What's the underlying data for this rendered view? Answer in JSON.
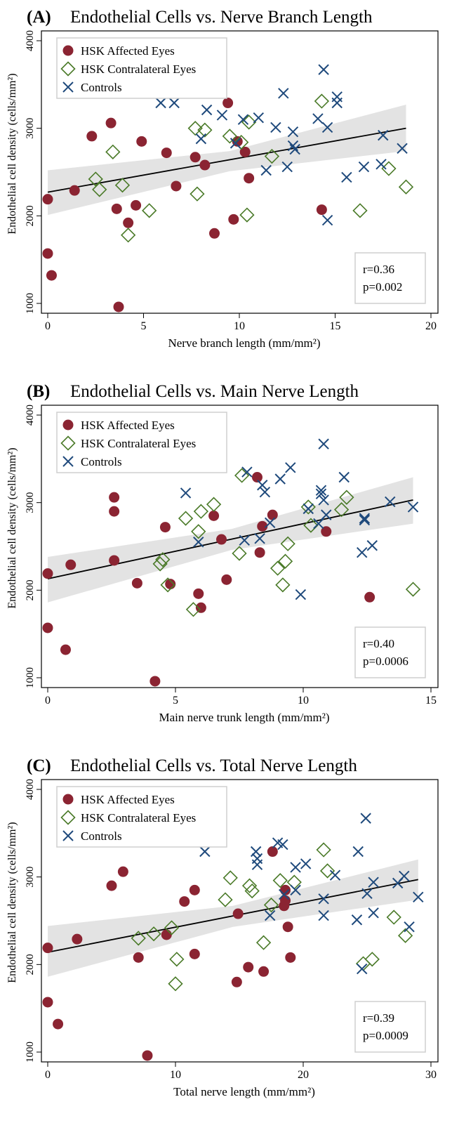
{
  "chart_data": [
    {
      "type": "scatter",
      "panel_label": "(A)",
      "title": "Endothelial Cells vs. Nerve Branch Length",
      "xlabel": "Nerve branch length (mm/mm²)",
      "ylabel": "Endothelial cell density (cells/mm²)",
      "xlim": [
        0,
        20
      ],
      "ylim": [
        1000,
        4000
      ],
      "xticks": [
        "0",
        "5",
        "10",
        "15",
        "20"
      ],
      "yticks": [
        "1000",
        "2000",
        "3000",
        "4000"
      ],
      "legend_position": "top-left",
      "stat_r": "r=0.36",
      "stat_p": "p=0.002",
      "fit_line": {
        "x": [
          0,
          18.7
        ],
        "y": [
          2270,
          3000
        ]
      },
      "ci_band": {
        "x": [
          0,
          9.5,
          18.7
        ],
        "upper": [
          2520,
          2740,
          3270
        ],
        "lower": [
          2010,
          2510,
          2740
        ]
      },
      "series": [
        {
          "name": "HSK Affected Eyes",
          "marker": "circle",
          "color": "#8b2432",
          "points": [
            [
              0,
              2190
            ],
            [
              0,
              1570
            ],
            [
              0.2,
              1320
            ],
            [
              1.4,
              2290
            ],
            [
              2.3,
              2910
            ],
            [
              3.3,
              3060
            ],
            [
              3.6,
              2080
            ],
            [
              3.7,
              960
            ],
            [
              4.2,
              1920
            ],
            [
              4.6,
              2120
            ],
            [
              4.9,
              2850
            ],
            [
              6.2,
              2720
            ],
            [
              6.7,
              2340
            ],
            [
              7.7,
              2670
            ],
            [
              8.2,
              2580
            ],
            [
              8.7,
              1800
            ],
            [
              9.4,
              3290
            ],
            [
              9.7,
              1960
            ],
            [
              9.9,
              2850
            ],
            [
              10.3,
              2730
            ],
            [
              10.5,
              2430
            ],
            [
              14.3,
              2070
            ]
          ]
        },
        {
          "name": "HSK Contralateral Eyes",
          "marker": "diamond",
          "color": "#4a7a28",
          "points": [
            [
              2.5,
              2420
            ],
            [
              2.7,
              2300
            ],
            [
              3.4,
              2730
            ],
            [
              3.9,
              2350
            ],
            [
              4.2,
              1780
            ],
            [
              5.3,
              2060
            ],
            [
              7.7,
              3000
            ],
            [
              7.8,
              2250
            ],
            [
              8.2,
              2980
            ],
            [
              9.5,
              2910
            ],
            [
              10.1,
              2840
            ],
            [
              10.4,
              2010
            ],
            [
              10.5,
              3070
            ],
            [
              11.7,
              2680
            ],
            [
              14.3,
              3310
            ],
            [
              16.3,
              2060
            ],
            [
              17.8,
              2540
            ],
            [
              18.7,
              2330
            ]
          ]
        },
        {
          "name": "Controls",
          "marker": "x",
          "color": "#1f4a7c",
          "points": [
            [
              5.9,
              3290
            ],
            [
              6.6,
              3290
            ],
            [
              8.0,
              2880
            ],
            [
              8.3,
              3210
            ],
            [
              9.1,
              3150
            ],
            [
              9.8,
              2830
            ],
            [
              10.2,
              3100
            ],
            [
              11.0,
              3120
            ],
            [
              11.4,
              2520
            ],
            [
              11.9,
              3010
            ],
            [
              12.3,
              3400
            ],
            [
              12.5,
              2560
            ],
            [
              12.8,
              2960
            ],
            [
              12.8,
              2800
            ],
            [
              12.9,
              2760
            ],
            [
              14.1,
              3110
            ],
            [
              14.4,
              3670
            ],
            [
              14.6,
              1950
            ],
            [
              14.6,
              3010
            ],
            [
              15.1,
              3360
            ],
            [
              15.1,
              3290
            ],
            [
              15.6,
              2440
            ],
            [
              16.5,
              2560
            ],
            [
              17.4,
              2590
            ],
            [
              17.5,
              2920
            ],
            [
              18.5,
              2770
            ]
          ]
        }
      ]
    },
    {
      "type": "scatter",
      "panel_label": "(B)",
      "title": "Endothelial Cells vs. Main Nerve Length",
      "xlabel": "Main nerve trunk length (mm/mm²)",
      "ylabel": "Endothelial cell density (cells/mm²)",
      "xlim": [
        0,
        15
      ],
      "ylim": [
        1000,
        4000
      ],
      "xticks": [
        "0",
        "5",
        "10",
        "15"
      ],
      "yticks": [
        "1000",
        "2000",
        "3000",
        "4000"
      ],
      "legend_position": "top-left",
      "stat_r": "r=0.40",
      "stat_p": "p=0.0006",
      "fit_line": {
        "x": [
          0,
          14.3
        ],
        "y": [
          2130,
          3030
        ]
      },
      "ci_band": {
        "x": [
          0,
          7.2,
          14.3
        ],
        "upper": [
          2380,
          2700,
          3290
        ],
        "lower": [
          1860,
          2460,
          2760
        ]
      },
      "series": [
        {
          "name": "HSK Affected Eyes",
          "marker": "circle",
          "color": "#8b2432",
          "points": [
            [
              0,
              2190
            ],
            [
              0,
              1570
            ],
            [
              0.7,
              1320
            ],
            [
              0.9,
              2290
            ],
            [
              2.6,
              3060
            ],
            [
              2.6,
              2900
            ],
            [
              2.6,
              2340
            ],
            [
              3.5,
              2080
            ],
            [
              4.2,
              960
            ],
            [
              4.6,
              2720
            ],
            [
              4.8,
              2070
            ],
            [
              5.9,
              1960
            ],
            [
              6.0,
              1800
            ],
            [
              6.5,
              2850
            ],
            [
              6.8,
              2580
            ],
            [
              7.0,
              2120
            ],
            [
              8.2,
              3290
            ],
            [
              8.3,
              2430
            ],
            [
              8.4,
              2730
            ],
            [
              8.8,
              2860
            ],
            [
              10.9,
              2670
            ],
            [
              12.6,
              1920
            ]
          ]
        },
        {
          "name": "HSK Contralateral Eyes",
          "marker": "diamond",
          "color": "#4a7a28",
          "points": [
            [
              4.4,
              2300
            ],
            [
              4.5,
              2350
            ],
            [
              4.7,
              2060
            ],
            [
              5.4,
              2820
            ],
            [
              5.7,
              1780
            ],
            [
              5.9,
              2670
            ],
            [
              6.0,
              2900
            ],
            [
              6.5,
              2980
            ],
            [
              7.5,
              2420
            ],
            [
              7.6,
              3310
            ],
            [
              9.0,
              2250
            ],
            [
              9.2,
              2060
            ],
            [
              9.3,
              2330
            ],
            [
              9.4,
              2530
            ],
            [
              10.2,
              2950
            ],
            [
              10.3,
              2740
            ],
            [
              11.5,
              2920
            ],
            [
              11.7,
              3060
            ],
            [
              14.3,
              2010
            ]
          ]
        },
        {
          "name": "Controls",
          "marker": "x",
          "color": "#1f4a7c",
          "points": [
            [
              5.4,
              3110
            ],
            [
              5.9,
              2550
            ],
            [
              7.7,
              2570
            ],
            [
              7.8,
              3350
            ],
            [
              8.3,
              2590
            ],
            [
              8.4,
              3200
            ],
            [
              8.5,
              3120
            ],
            [
              8.7,
              2770
            ],
            [
              9.1,
              3270
            ],
            [
              9.5,
              3400
            ],
            [
              9.9,
              1950
            ],
            [
              10.2,
              2930
            ],
            [
              10.6,
              2760
            ],
            [
              10.7,
              3100
            ],
            [
              10.7,
              3140
            ],
            [
              10.8,
              3670
            ],
            [
              10.8,
              3030
            ],
            [
              10.9,
              2860
            ],
            [
              11.6,
              3290
            ],
            [
              12.3,
              2430
            ],
            [
              12.4,
              2820
            ],
            [
              12.4,
              2800
            ],
            [
              12.7,
              2510
            ],
            [
              13.4,
              3010
            ],
            [
              14.3,
              2950
            ]
          ]
        }
      ]
    },
    {
      "type": "scatter",
      "panel_label": "(C)",
      "title": "Endothelial Cells vs. Total Nerve Length",
      "xlabel": "Total nerve length (mm/mm²)",
      "ylabel": "Endothelial cell density (cells/mm²)",
      "xlim": [
        0,
        30
      ],
      "ylim": [
        1000,
        4000
      ],
      "xticks": [
        "0",
        "10",
        "20",
        "30"
      ],
      "yticks": [
        "1000",
        "2000",
        "3000",
        "4000"
      ],
      "legend_position": "top-left",
      "stat_r": "r=0.39",
      "stat_p": "p=0.0009",
      "fit_line": {
        "x": [
          0,
          29
        ],
        "y": [
          2140,
          2970
        ]
      },
      "ci_band": {
        "x": [
          0,
          14.5,
          29
        ],
        "upper": [
          2440,
          2670,
          3200
        ],
        "lower": [
          1860,
          2430,
          2740
        ]
      },
      "series": [
        {
          "name": "HSK Affected Eyes",
          "marker": "circle",
          "color": "#8b2432",
          "points": [
            [
              0,
              2190
            ],
            [
              0,
              1570
            ],
            [
              0.8,
              1320
            ],
            [
              2.3,
              2290
            ],
            [
              5.0,
              2900
            ],
            [
              5.9,
              3060
            ],
            [
              7.1,
              2080
            ],
            [
              7.8,
              960
            ],
            [
              9.3,
              2340
            ],
            [
              10.7,
              2720
            ],
            [
              11.5,
              2850
            ],
            [
              11.5,
              2120
            ],
            [
              14.8,
              1800
            ],
            [
              14.9,
              2580
            ],
            [
              15.7,
              1970
            ],
            [
              16.9,
              1920
            ],
            [
              17.6,
              3290
            ],
            [
              18.5,
              2670
            ],
            [
              18.6,
              2730
            ],
            [
              18.6,
              2850
            ],
            [
              18.8,
              2430
            ],
            [
              19.0,
              2080
            ]
          ]
        },
        {
          "name": "HSK Contralateral Eyes",
          "marker": "diamond",
          "color": "#4a7a28",
          "points": [
            [
              7.1,
              2300
            ],
            [
              8.3,
              2350
            ],
            [
              9.7,
              2420
            ],
            [
              10.1,
              2060
            ],
            [
              10.0,
              1780
            ],
            [
              13.9,
              2740
            ],
            [
              14.3,
              2990
            ],
            [
              15.8,
              2900
            ],
            [
              16.0,
              2840
            ],
            [
              16.9,
              2250
            ],
            [
              17.5,
              2680
            ],
            [
              18.2,
              2960
            ],
            [
              19.3,
              2940
            ],
            [
              21.6,
              3310
            ],
            [
              21.9,
              3070
            ],
            [
              24.7,
              2010
            ],
            [
              25.4,
              2060
            ],
            [
              27.1,
              2540
            ],
            [
              28.0,
              2330
            ]
          ]
        },
        {
          "name": "Controls",
          "marker": "x",
          "color": "#1f4a7c",
          "points": [
            [
              12.3,
              3290
            ],
            [
              16.3,
              3290
            ],
            [
              16.4,
              3210
            ],
            [
              16.4,
              3140
            ],
            [
              17.4,
              2560
            ],
            [
              18.0,
              3390
            ],
            [
              18.4,
              3370
            ],
            [
              18.5,
              2800
            ],
            [
              19.4,
              3110
            ],
            [
              20.2,
              3150
            ],
            [
              22.5,
              3020
            ],
            [
              21.6,
              2750
            ],
            [
              21.6,
              2560
            ],
            [
              24.2,
              2510
            ],
            [
              24.3,
              3290
            ],
            [
              24.6,
              1950
            ],
            [
              24.9,
              3670
            ],
            [
              25.0,
              2810
            ],
            [
              25.5,
              2940
            ],
            [
              25.5,
              2590
            ],
            [
              27.4,
              2930
            ],
            [
              27.9,
              3010
            ],
            [
              28.3,
              2430
            ],
            [
              29.0,
              2770
            ],
            [
              19.4,
              2850
            ]
          ]
        }
      ]
    }
  ]
}
